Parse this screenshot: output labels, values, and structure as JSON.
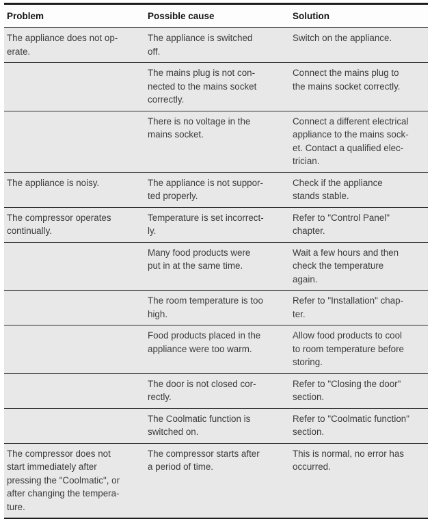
{
  "document": {
    "kind": "appliance-troubleshooting-table",
    "colors": {
      "row_background": "#e8e8e8",
      "header_background": "#fdfdfd",
      "rule_lines": "#1d1d1d",
      "body_text": "#3b3b3b",
      "header_text": "#151515"
    },
    "headers": {
      "problem": "Problem",
      "cause": "Possible cause",
      "solution": "Solution"
    },
    "rows": [
      {
        "problem": "The appliance does not op-\nerate.",
        "cause": "The appliance is switched\noff.",
        "solution": "Switch on the appliance."
      },
      {
        "problem": "",
        "cause": "The mains plug is not con-\nnected to the mains socket\ncorrectly.",
        "solution": "Connect the mains plug to\nthe mains socket correctly."
      },
      {
        "problem": "",
        "cause": "There is no voltage in the\nmains socket.",
        "solution": "Connect a different electrical\nappliance to the mains sock-\net. Contact a qualified elec-\ntrician."
      },
      {
        "problem": "The appliance is noisy.",
        "cause": "The appliance is not suppor-\nted properly.",
        "solution": "Check if the appliance\nstands stable."
      },
      {
        "problem": "The compressor operates\ncontinually.",
        "cause": "Temperature is set incorrect-\nly.",
        "solution": "Refer to \"Control Panel\"\nchapter."
      },
      {
        "problem": "",
        "cause": "Many food products were\nput in at the same time.",
        "solution": "Wait a few hours and then\ncheck the temperature\nagain."
      },
      {
        "problem": "",
        "cause": "The room temperature is too\nhigh.",
        "solution": "Refer to \"Installation\" chap-\nter."
      },
      {
        "problem": "",
        "cause": "Food products placed in the\nappliance were too warm.",
        "solution": "Allow food products to cool\nto room temperature before\nstoring."
      },
      {
        "problem": "",
        "cause": "The door is not closed cor-\nrectly.",
        "solution": "Refer to \"Closing the door\"\nsection."
      },
      {
        "problem": "",
        "cause": "The Coolmatic function is\nswitched on.",
        "solution": "Refer to \"Coolmatic function\"\nsection."
      },
      {
        "problem": "The compressor does not\nstart immediately after\npressing the \"Coolmatic\", or\nafter changing the tempera-\nture.",
        "cause": "The compressor starts after\na period of time.",
        "solution": "This is normal, no error has\noccurred."
      }
    ]
  }
}
